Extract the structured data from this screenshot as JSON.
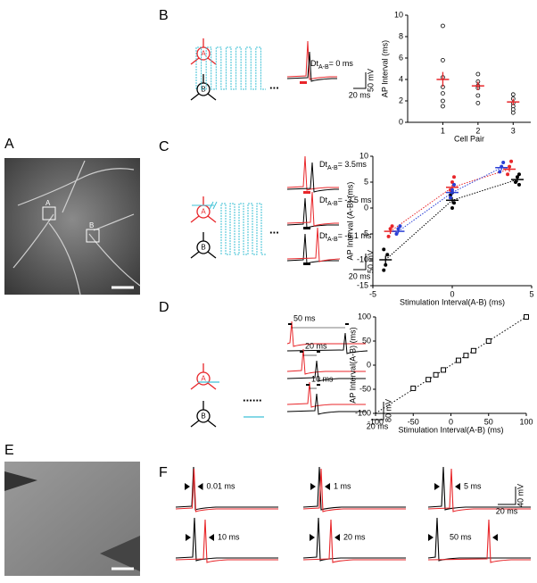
{
  "panel_labels": {
    "a": "A",
    "b": "B",
    "c": "C",
    "d": "D",
    "e": "E",
    "f": "F"
  },
  "image_a_markers": {
    "a": "A",
    "b": "B"
  },
  "neuron_labels": {
    "a": "A",
    "b": "B"
  },
  "dt": {
    "symbol": "Dt",
    "subscript": "A-B"
  },
  "panel_b": {
    "dt_value": "= 0 ms",
    "ellipsis": "...",
    "scale_v": "50 mV",
    "scale_t": "20 ms"
  },
  "panel_c": {
    "dt_values": [
      "= 3.5ms",
      "= -3.5 ms",
      "= -6.1 ms"
    ],
    "ellipsis": "...",
    "scale_v": "50 mV",
    "scale_t": "20 ms"
  },
  "panel_d": {
    "intervals": [
      "50 ms",
      "20 ms",
      "10 ms"
    ],
    "ellipsis": "......",
    "scale_v": "80 mV",
    "scale_t": "20 ms"
  },
  "panel_f": {
    "intervals": [
      "0.01 ms",
      "1 ms",
      "5 ms",
      "10 ms",
      "20 ms",
      "50 ms"
    ],
    "scale_v": "40 mV",
    "scale_t": "20 ms"
  },
  "chart_data": [
    {
      "type": "scatter",
      "xlabel": "Cell Pair",
      "ylabel": "AP Interval (ms)",
      "xlim": [
        0,
        3.5
      ],
      "ylim": [
        0,
        10
      ],
      "xticks": [
        1,
        2,
        3
      ],
      "yticks": [
        0,
        2,
        4,
        6,
        8,
        10
      ],
      "series": [
        {
          "color": "#000000",
          "marker": "open-circle",
          "x": [
            1,
            1,
            1,
            1,
            1,
            1,
            1,
            2,
            2,
            2,
            2,
            2,
            2,
            3,
            3,
            3,
            3,
            3,
            3
          ],
          "y": [
            9,
            5.8,
            4.2,
            3.3,
            2.7,
            2,
            1.5,
            4.5,
            3.8,
            3.4,
            3.2,
            2.5,
            1.8,
            2.6,
            2.2,
            1.8,
            1.5,
            1.2,
            0.9
          ],
          "mean_color": "#e8262a",
          "mean_x": [
            1,
            2,
            3
          ],
          "mean_values": [
            4,
            3.4,
            1.9
          ],
          "mean_errors": [
            0.7,
            0.4,
            0.3
          ]
        }
      ]
    },
    {
      "type": "scatter",
      "xlabel": "Stimulation Interval(A-B) (ms)",
      "ylabel": "AP Interval (A-B) (ms)",
      "xlim": [
        -5,
        5
      ],
      "ylim": [
        -15,
        10
      ],
      "xticks": [
        -5,
        0,
        5
      ],
      "yticks": [
        -15,
        -10,
        -5,
        0,
        5,
        10
      ],
      "series": [
        {
          "color": "#000000",
          "marker": "filled-circle",
          "x": [
            -4.2,
            -4.2,
            -4.2,
            -4.2,
            0,
            0,
            0,
            0,
            4.1,
            4.1,
            4.1,
            4.1
          ],
          "y": [
            -12,
            -11,
            -9,
            -8,
            0,
            1,
            2.5,
            3,
            4.5,
            5,
            6,
            6.5
          ],
          "mean_color": "#000000",
          "mean_x": [
            -4.2,
            0,
            4.1
          ],
          "mean_values": [
            -10,
            1.5,
            5.5
          ],
          "mean_errors": [
            0.8,
            0.6,
            0.5
          ]
        },
        {
          "color": "#e8262a",
          "marker": "filled-circle",
          "x": [
            -3.9,
            -3.9,
            -3.9,
            0,
            0,
            0,
            3.6,
            3.6,
            3.6
          ],
          "y": [
            -5.5,
            -4,
            -3.5,
            3.5,
            5,
            6,
            6.5,
            8,
            9
          ],
          "mean_color": "#e8262a",
          "mean_x": [
            -3.9,
            0,
            3.6
          ],
          "mean_values": [
            -4.5,
            4,
            7.5
          ],
          "mean_errors": [
            0.5,
            0.5,
            0.5
          ]
        },
        {
          "color": "#2a3fd6",
          "marker": "filled-circle",
          "x": [
            -3.4,
            -3.4,
            -3.4,
            0,
            0,
            0,
            3.1,
            3.1,
            3.1
          ],
          "y": [
            -5,
            -4,
            -3.5,
            2,
            3.5,
            4.5,
            7,
            8,
            8.8
          ],
          "mean_color": "#2a3fd6",
          "mean_x": [
            -3.4,
            0,
            3.1
          ],
          "mean_values": [
            -4.5,
            3,
            7.8
          ],
          "mean_errors": [
            0.4,
            0.5,
            0.5
          ]
        }
      ]
    },
    {
      "type": "scatter",
      "xlabel": "Stimulation Interval(A-B) (ms)",
      "ylabel": "AP Interval(A-B) (ms)",
      "xlim": [
        -100,
        100
      ],
      "ylim": [
        -100,
        100
      ],
      "xticks": [
        -100,
        -50,
        0,
        50,
        100
      ],
      "yticks": [
        -100,
        -50,
        0,
        50,
        100
      ],
      "reference_line": "identity",
      "series": [
        {
          "color": "#000000",
          "marker": "open-square",
          "x": [
            -50,
            -30,
            -20,
            -10,
            10,
            20,
            30,
            50,
            100
          ],
          "y": [
            -48,
            -30,
            -20,
            -10,
            10,
            20,
            30,
            50,
            100
          ]
        }
      ]
    }
  ]
}
